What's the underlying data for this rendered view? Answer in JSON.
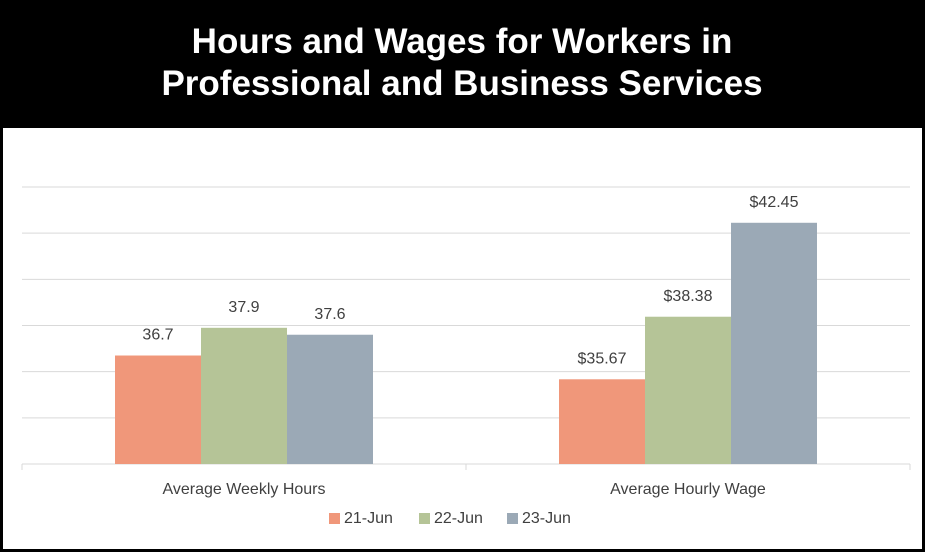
{
  "chart_data": {
    "type": "bar",
    "title": "Hours and Wages for Workers in Professional and Business Services",
    "categories": [
      "Average Weekly Hours",
      "Average Hourly Wage"
    ],
    "series": [
      {
        "name": "21-Jun",
        "color": "#f0977a",
        "values": [
          36.7,
          35.67
        ],
        "value_labels": [
          "36.7",
          "$35.67"
        ]
      },
      {
        "name": "22-Jun",
        "color": "#b5c497",
        "values": [
          37.9,
          38.38
        ],
        "value_labels": [
          "37.9",
          "$38.38"
        ]
      },
      {
        "name": "23-Jun",
        "color": "#9ba9b6",
        "values": [
          37.6,
          42.45
        ],
        "value_labels": [
          "37.6",
          "$42.45"
        ]
      }
    ],
    "ylim": [
      32,
      44
    ],
    "yticks": [
      32,
      34,
      36,
      38,
      40,
      42,
      44
    ],
    "grid": true,
    "legend": "bottom"
  }
}
